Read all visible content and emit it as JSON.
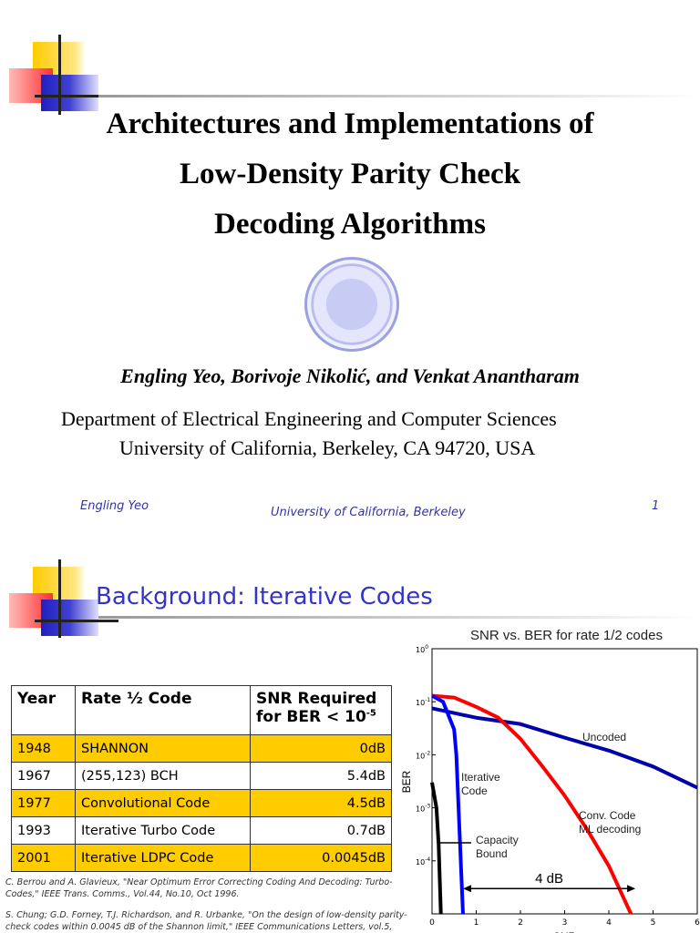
{
  "slide1": {
    "title_lines": [
      "Architectures and Implementations of",
      "Low-Density Parity Check",
      "Decoding Algorithms"
    ],
    "authors": "Engling Yeo, Borivoje Nikolić, and Venkat Anantharam",
    "department": "Department of Electrical Engineering and Computer Sciences",
    "address": "University of California, Berkeley, CA 94720, USA",
    "footer": {
      "left": "Engling Yeo",
      "center": "University of California, Berkeley",
      "page": "1"
    }
  },
  "slide2": {
    "title": "Background: Iterative Codes",
    "title_color": "#3333cc",
    "table": {
      "headers": [
        "Year",
        "Rate ½ Code",
        "SNR Required for BER < 10",
        "-5"
      ],
      "rows": [
        {
          "year": "1948",
          "code": "SHANNON",
          "snr": "0dB",
          "highlight": true
        },
        {
          "year": "1967",
          "code": "(255,123) BCH",
          "snr": "5.4dB",
          "highlight": false
        },
        {
          "year": "1977",
          "code": "Convolutional Code",
          "snr": "4.5dB",
          "highlight": true
        },
        {
          "year": "1993",
          "code": "Iterative Turbo Code",
          "snr": "0.7dB",
          "highlight": false
        },
        {
          "year": "2001",
          "code": "Iterative LDPC Code",
          "snr": "0.0045dB",
          "highlight": true
        }
      ],
      "highlight_color": "#ffcc00"
    },
    "references": [
      "C. Berrou and A. Glavieux, \"Near Optimum Error Correcting Coding And Decoding: Turbo-Codes,\" IEEE Trans. Comms., Vol.44, No.10, Oct 1996.",
      "S. Chung; G.D. Forney, T.J. Richardson, and R. Urbanke,  \"On the design of low-density parity-check codes within 0.0045 dB of the Shannon limit,\" IEEE Communications Letters, vol.5,"
    ]
  },
  "chart_data": {
    "type": "line",
    "title": "SNR vs. BER for rate 1/2 codes",
    "xlabel": "SNR",
    "ylabel": "BER",
    "xlim": [
      0,
      6
    ],
    "ylim": [
      1e-05,
      1
    ],
    "yscale": "log",
    "xticks": [
      "0",
      "1",
      "2",
      "3",
      "4",
      "5",
      "6"
    ],
    "yticks": [
      {
        "base": "10",
        "exp": "0"
      },
      {
        "base": "10",
        "exp": "-1"
      },
      {
        "base": "10",
        "exp": "-2"
      },
      {
        "base": "10",
        "exp": "-3"
      },
      {
        "base": "10",
        "exp": "-4"
      }
    ],
    "series": [
      {
        "name": "Uncoded",
        "color": "#0000aa",
        "x": [
          0,
          1,
          2,
          3,
          4,
          5,
          6
        ],
        "y": [
          0.075,
          0.05,
          0.038,
          0.021,
          0.012,
          0.006,
          0.0024
        ]
      },
      {
        "name": "Conv. Code ML decoding",
        "color": "#ff0000",
        "x": [
          0,
          0.5,
          1,
          1.5,
          2,
          2.5,
          3,
          3.5,
          4,
          4.5
        ],
        "y": [
          0.13,
          0.12,
          0.08,
          0.05,
          0.02,
          0.006,
          0.0017,
          0.0004,
          8e-05,
          1e-05
        ]
      },
      {
        "name": "Iterative Code",
        "color": "#0000ff",
        "x": [
          0,
          0.25,
          0.5,
          0.55,
          0.6,
          0.7
        ],
        "y": [
          0.13,
          0.1,
          0.03,
          0.01,
          0.001,
          1e-05
        ]
      },
      {
        "name": "Capacity Bound",
        "color": "#000000",
        "x": [
          0,
          0.1,
          0.15,
          0.2
        ],
        "y": [
          0.003,
          0.001,
          0.0002,
          1e-05
        ]
      }
    ],
    "annotations": [
      {
        "text": "4 dB",
        "from_x": 0.7,
        "to_x": 4.6,
        "y": 3e-05
      }
    ],
    "grid": false
  }
}
